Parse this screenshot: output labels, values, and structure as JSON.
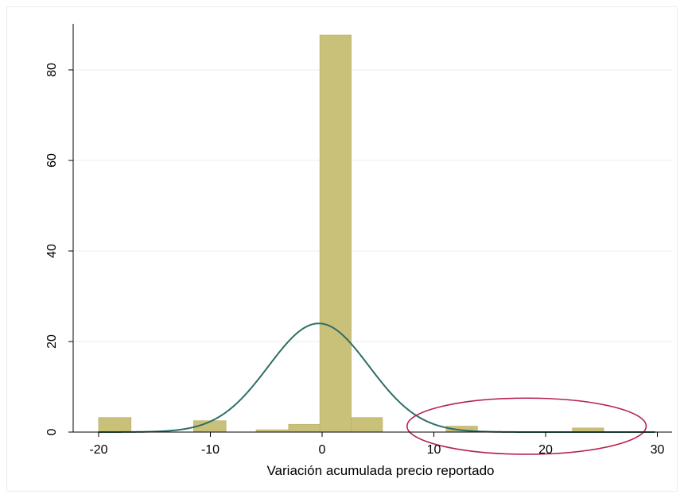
{
  "chart_data": {
    "type": "bar",
    "title": "",
    "xlabel": "Variación acumulada precio reportado",
    "ylabel": "",
    "xlim": [
      -21,
      30.5
    ],
    "ylim": [
      0,
      92
    ],
    "x_ticks": [
      "-20",
      "-10",
      "0",
      "10",
      "20",
      "30"
    ],
    "y_ticks": [
      "0",
      "20",
      "40",
      "60",
      "80"
    ],
    "x_tick_values": [
      -20,
      -10,
      0,
      10,
      20,
      30
    ],
    "y_tick_values": [
      0,
      20,
      40,
      60,
      80
    ],
    "grid": true,
    "bins": [
      {
        "x0": -20.0,
        "x1": -17.1,
        "value": 3.2
      },
      {
        "x0": -11.5,
        "x1": -8.6,
        "value": 2.5
      },
      {
        "x0": -5.9,
        "x1": -3.0,
        "value": 0.5
      },
      {
        "x0": -3.0,
        "x1": -0.2,
        "value": 1.7
      },
      {
        "x0": -0.2,
        "x1": 2.6,
        "value": 87.7
      },
      {
        "x0": 2.6,
        "x1": 5.4,
        "value": 3.2
      },
      {
        "x0": 11.1,
        "x1": 13.9,
        "value": 1.3
      },
      {
        "x0": 22.4,
        "x1": 25.2,
        "value": 0.9
      }
    ],
    "normal_curve": {
      "mean": -0.3,
      "sd": 4.5,
      "peak": 24.0,
      "color": "#2e6e66"
    },
    "annotation_ellipse": {
      "cx": 18.3,
      "cy": 1.3,
      "rx": 10.7,
      "ry": 6.2,
      "color": "#b5224e"
    },
    "bar_color": "#c9c07a",
    "bar_edge": "#bdb36e"
  }
}
